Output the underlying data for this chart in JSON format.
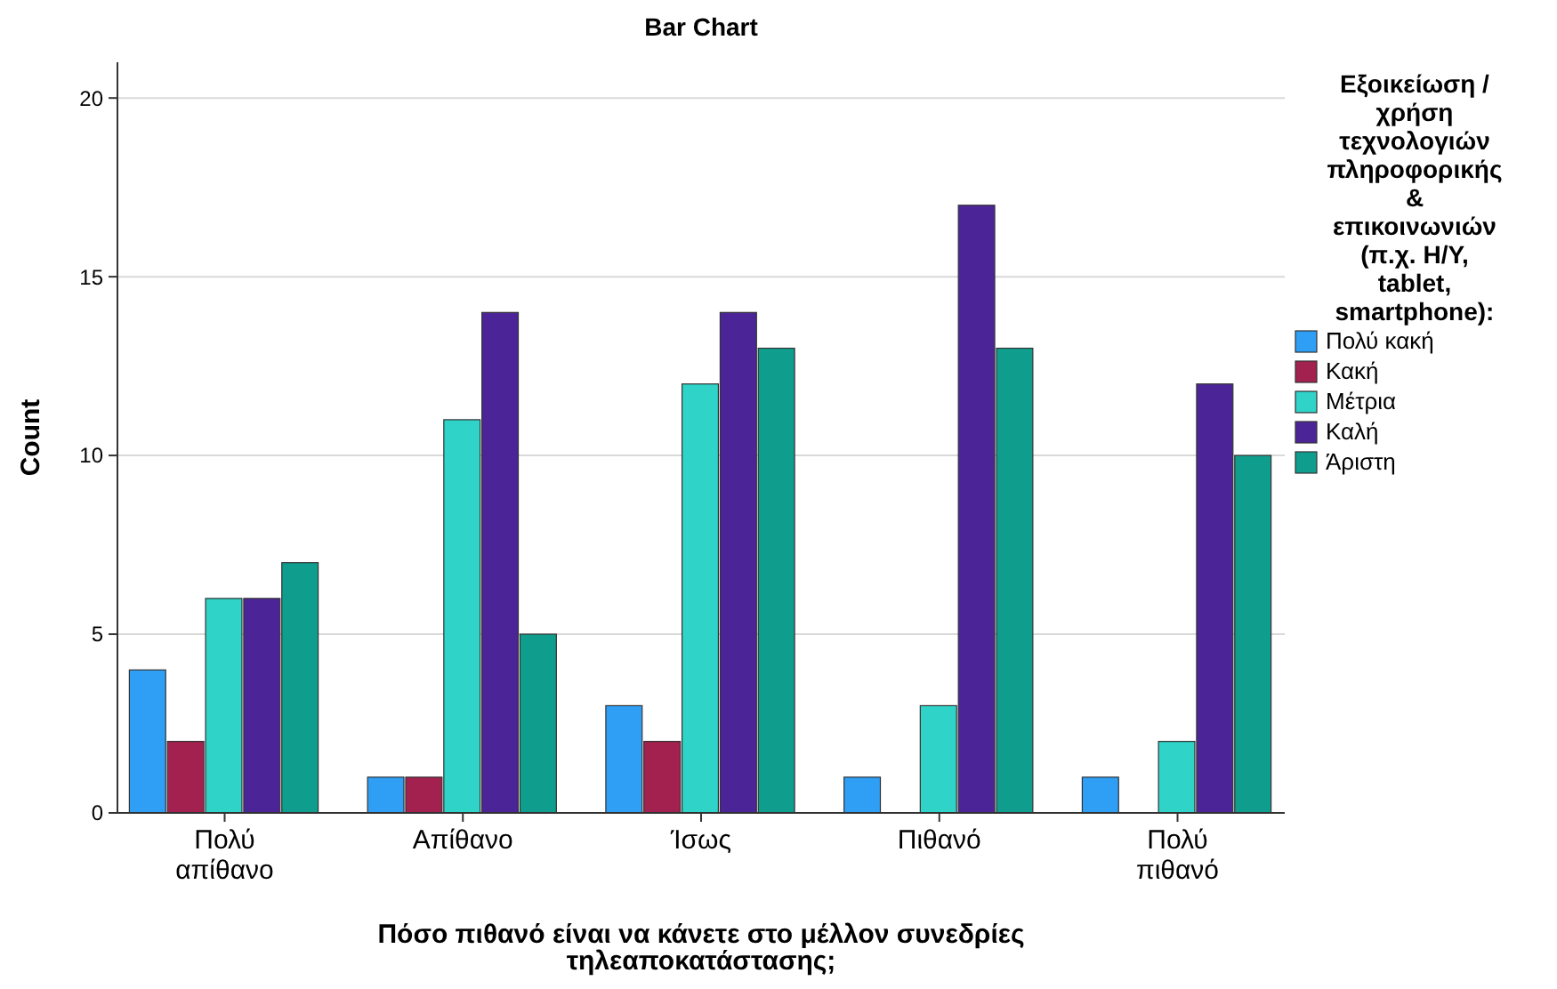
{
  "chart_data": {
    "type": "bar",
    "title": "Bar Chart",
    "xlabel": "Πόσο πιθανό είναι να κάνετε στο μέλλον συνεδρίες τηλεαποκατάστασης;",
    "ylabel": "Count",
    "legend_title": "Εξοικείωση / χρήση τεχνολογιών πληροφορικής & επικοινωνιών (π.χ. Η/Υ, tablet, smartphone):",
    "categories": [
      "Πολύ απίθανο",
      "Απίθανο",
      "Ίσως",
      "Πιθανό",
      "Πολύ πιθανό"
    ],
    "series": [
      {
        "name": "Πολύ κακή",
        "color": "#2f9ff5",
        "values": [
          4,
          1,
          3,
          1,
          1
        ]
      },
      {
        "name": "Κακή",
        "color": "#a3214f",
        "values": [
          2,
          1,
          2,
          0,
          0
        ]
      },
      {
        "name": "Μέτρια",
        "color": "#2fd3c8",
        "values": [
          6,
          11,
          12,
          3,
          2
        ]
      },
      {
        "name": "Καλή",
        "color": "#4b2598",
        "values": [
          6,
          14,
          14,
          17,
          12
        ]
      },
      {
        "name": "Άριστη",
        "color": "#0f9e8e",
        "values": [
          7,
          5,
          13,
          13,
          10
        ]
      }
    ],
    "ylim": [
      0,
      21
    ],
    "yticks": [
      0,
      5,
      10,
      15,
      20
    ],
    "grid": "y",
    "legend": "right"
  }
}
